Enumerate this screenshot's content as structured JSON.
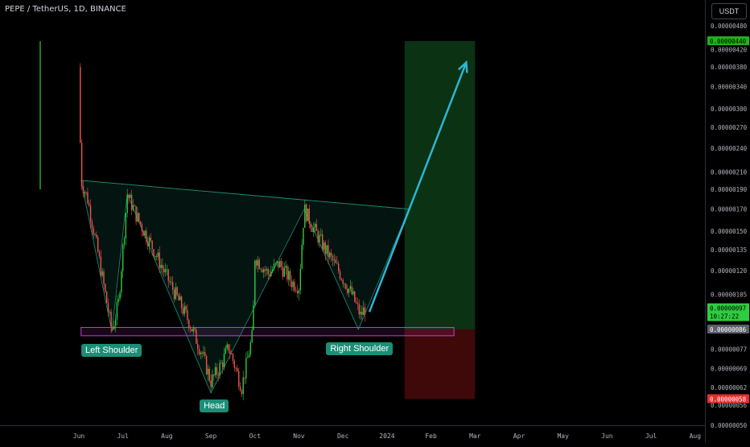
{
  "header": {
    "title": "PEPE / TetherUS, 1D, BINANCE",
    "currency": "USDT"
  },
  "colors": {
    "up": "#26a69a",
    "down": "#ef5350",
    "upBright": "#2ecc40",
    "cyanArrow": "#2bb6d6",
    "pattern": "#1b8f76",
    "zone": "#cc3cc6"
  },
  "labels": {
    "left_shoulder": "Left Shoulder",
    "head": "Head",
    "right_shoulder": "Right Shoulder"
  },
  "price_badges": {
    "target": "0.00000440",
    "current": "0.00000097",
    "countdown": "10:27:22",
    "entry": "0.00000086",
    "stop": "0.00000058"
  },
  "chart_data": {
    "type": "candlestick",
    "title": "PEPE / TetherUS, 1D, BINANCE",
    "y_scale": "log",
    "y_ticks": [
      "0.00000480",
      "0.00000420",
      "0.00000380",
      "0.00000340",
      "0.00000300",
      "0.00000270",
      "0.00000240",
      "0.00000210",
      "0.00000190",
      "0.00000170",
      "0.00000150",
      "0.00000135",
      "0.00000120",
      "0.00000105",
      "0.00000086",
      "0.00000077",
      "0.00000069",
      "0.00000062",
      "0.00000056",
      "0.00000050"
    ],
    "y_tick_values": [
      4.8,
      4.2,
      3.8,
      3.4,
      3.0,
      2.7,
      2.4,
      2.1,
      1.9,
      1.7,
      1.5,
      1.35,
      1.2,
      1.05,
      0.86,
      0.77,
      0.69,
      0.62,
      0.56,
      0.5
    ],
    "x_ticks": [
      "Jun",
      "Jul",
      "Aug",
      "Sep",
      "Oct",
      "Nov",
      "Dec",
      "2024",
      "Feb",
      "Mar",
      "Apr",
      "May",
      "Jun",
      "Jul",
      "Aug"
    ],
    "price_path": [
      {
        "m": 0.0,
        "p": 3.8
      },
      {
        "m": 0.05,
        "p": 2.0
      },
      {
        "m": 0.2,
        "p": 1.8
      },
      {
        "m": 0.45,
        "p": 1.3
      },
      {
        "m": 0.75,
        "p": 0.85
      },
      {
        "m": 0.9,
        "p": 1.0
      },
      {
        "m": 1.1,
        "p": 1.85
      },
      {
        "m": 1.35,
        "p": 1.6
      },
      {
        "m": 1.7,
        "p": 1.35
      },
      {
        "m": 2.1,
        "p": 1.1
      },
      {
        "m": 2.5,
        "p": 0.9
      },
      {
        "m": 2.8,
        "p": 0.75
      },
      {
        "m": 3.0,
        "p": 0.64
      },
      {
        "m": 3.25,
        "p": 0.71
      },
      {
        "m": 3.4,
        "p": 0.78
      },
      {
        "m": 3.7,
        "p": 0.62
      },
      {
        "m": 3.95,
        "p": 0.84
      },
      {
        "m": 4.0,
        "p": 1.3
      },
      {
        "m": 4.3,
        "p": 1.18
      },
      {
        "m": 4.55,
        "p": 1.25
      },
      {
        "m": 4.85,
        "p": 1.12
      },
      {
        "m": 5.0,
        "p": 1.1
      },
      {
        "m": 5.12,
        "p": 1.7
      },
      {
        "m": 5.3,
        "p": 1.55
      },
      {
        "m": 5.6,
        "p": 1.35
      },
      {
        "m": 5.9,
        "p": 1.2
      },
      {
        "m": 6.2,
        "p": 1.05
      },
      {
        "m": 6.4,
        "p": 0.93
      },
      {
        "m": 6.5,
        "p": 0.97
      }
    ],
    "pattern": {
      "name": "Inverse head and shoulders",
      "neckline": [
        {
          "m": 0.05,
          "p": 2.0
        },
        {
          "m": 7.5,
          "p": 1.7
        }
      ],
      "left_shoulder": {
        "m": 0.75,
        "p": 0.85
      },
      "head": {
        "m": 3.0,
        "p": 0.6
      },
      "right_shoulder": {
        "m": 6.35,
        "p": 0.86
      }
    },
    "support_zone": {
      "low": 0.83,
      "high": 0.87
    },
    "trade": {
      "entry": 0.86,
      "target": 4.4,
      "stop": 0.58,
      "start_m": 7.4,
      "end_m": 9.0
    },
    "projection_arrow": {
      "from": {
        "m": 6.6,
        "p": 0.95
      },
      "to": {
        "m": 8.8,
        "p": 3.9
      }
    },
    "grid": false,
    "legend": "none"
  }
}
